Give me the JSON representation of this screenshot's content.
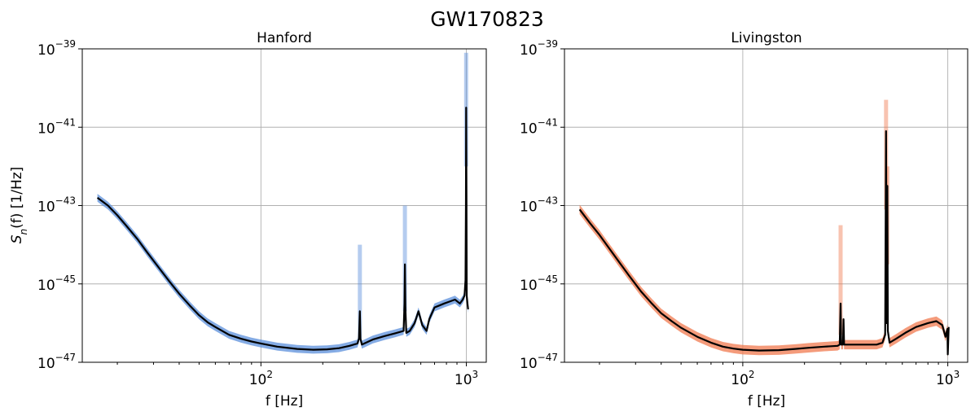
{
  "figure": {
    "title": "GW170823"
  },
  "chart_data": [
    {
      "type": "line",
      "title": "Hanford",
      "xlabel": "f [Hz]",
      "ylabel": "S_n(f) [1/Hz]",
      "ylabel_parts": {
        "main": "S",
        "sub": "n",
        "rest": "(f) [1/Hz]"
      },
      "xscale": "log",
      "yscale": "log",
      "xlim": [
        13.5,
        1250
      ],
      "ylim_exp": [
        -47,
        -39
      ],
      "x_ticks": [
        {
          "base": "10",
          "exp": "2",
          "value": 100
        },
        {
          "base": "10",
          "exp": "3",
          "value": 1000
        }
      ],
      "y_ticks": [
        {
          "base": "10",
          "exp": "−39",
          "value": -39
        },
        {
          "base": "10",
          "exp": "−41",
          "value": -41
        },
        {
          "base": "10",
          "exp": "−43",
          "value": -43
        },
        {
          "base": "10",
          "exp": "−45",
          "value": -45
        },
        {
          "base": "10",
          "exp": "−47",
          "value": -47
        }
      ],
      "grid": true,
      "band_color": "#5b8fdb",
      "median_color": "#000000",
      "log10_psd_median": [
        [
          16,
          -42.8
        ],
        [
          18,
          -43.0
        ],
        [
          20,
          -43.25
        ],
        [
          22,
          -43.5
        ],
        [
          25,
          -43.85
        ],
        [
          28,
          -44.2
        ],
        [
          32,
          -44.6
        ],
        [
          36,
          -44.95
        ],
        [
          40,
          -45.25
        ],
        [
          45,
          -45.55
        ],
        [
          50,
          -45.8
        ],
        [
          55,
          -45.98
        ],
        [
          60,
          -46.1
        ],
        [
          70,
          -46.3
        ],
        [
          80,
          -46.4
        ],
        [
          90,
          -46.47
        ],
        [
          100,
          -46.52
        ],
        [
          120,
          -46.6
        ],
        [
          150,
          -46.66
        ],
        [
          180,
          -46.68
        ],
        [
          210,
          -46.67
        ],
        [
          240,
          -46.64
        ],
        [
          270,
          -46.58
        ],
        [
          295,
          -46.52
        ],
        [
          300,
          -46.4
        ],
        [
          303,
          -45.7
        ],
        [
          305,
          -46.4
        ],
        [
          310,
          -46.55
        ],
        [
          350,
          -46.42
        ],
        [
          400,
          -46.33
        ],
        [
          450,
          -46.26
        ],
        [
          495,
          -46.2
        ],
        [
          500,
          -45.5
        ],
        [
          502,
          -44.5
        ],
        [
          505,
          -45.6
        ],
        [
          510,
          -46.25
        ],
        [
          530,
          -46.2
        ],
        [
          560,
          -46.0
        ],
        [
          585,
          -45.7
        ],
        [
          610,
          -46.05
        ],
        [
          640,
          -46.2
        ],
        [
          660,
          -45.9
        ],
        [
          700,
          -45.6
        ],
        [
          740,
          -45.55
        ],
        [
          780,
          -45.5
        ],
        [
          830,
          -45.45
        ],
        [
          880,
          -45.4
        ],
        [
          930,
          -45.5
        ],
        [
          960,
          -45.4
        ],
        [
          980,
          -45.3
        ],
        [
          990,
          -44.9
        ],
        [
          995,
          -43.0
        ],
        [
          998,
          -40.5
        ],
        [
          1001,
          -42.8
        ],
        [
          1004,
          -45.3
        ],
        [
          1012,
          -45.5
        ],
        [
          1020,
          -45.65
        ]
      ],
      "band_halfwidth_dex": 0.1,
      "band_extras": [
        [
          303,
          -44.0,
          0.9
        ],
        [
          502,
          -43.0,
          1.2
        ],
        [
          998,
          -39.1,
          1.4
        ]
      ]
    },
    {
      "type": "line",
      "title": "Livingston",
      "xlabel": "f [Hz]",
      "ylabel": "",
      "xscale": "log",
      "yscale": "log",
      "xlim": [
        13.5,
        1250
      ],
      "ylim_exp": [
        -47,
        -39
      ],
      "x_ticks": [
        {
          "base": "10",
          "exp": "2",
          "value": 100
        },
        {
          "base": "10",
          "exp": "3",
          "value": 1000
        }
      ],
      "y_ticks": [
        {
          "base": "10",
          "exp": "−39",
          "value": -39
        },
        {
          "base": "10",
          "exp": "−41",
          "value": -41
        },
        {
          "base": "10",
          "exp": "−43",
          "value": -43
        },
        {
          "base": "10",
          "exp": "−45",
          "value": -45
        },
        {
          "base": "10",
          "exp": "−47",
          "value": -47
        }
      ],
      "grid": true,
      "band_color": "#f0794f",
      "median_color": "#000000",
      "log10_psd_median": [
        [
          16,
          -43.1
        ],
        [
          18,
          -43.45
        ],
        [
          20,
          -43.75
        ],
        [
          22,
          -44.05
        ],
        [
          25,
          -44.45
        ],
        [
          28,
          -44.8
        ],
        [
          32,
          -45.2
        ],
        [
          36,
          -45.5
        ],
        [
          40,
          -45.75
        ],
        [
          45,
          -45.95
        ],
        [
          50,
          -46.12
        ],
        [
          60,
          -46.35
        ],
        [
          70,
          -46.5
        ],
        [
          80,
          -46.6
        ],
        [
          90,
          -46.65
        ],
        [
          100,
          -46.68
        ],
        [
          120,
          -46.7
        ],
        [
          150,
          -46.69
        ],
        [
          180,
          -46.66
        ],
        [
          210,
          -46.63
        ],
        [
          250,
          -46.6
        ],
        [
          290,
          -46.58
        ],
        [
          297,
          -46.55
        ],
        [
          300,
          -45.5
        ],
        [
          302,
          -46.55
        ],
        [
          308,
          -46.55
        ],
        [
          310,
          -45.9
        ],
        [
          312,
          -46.55
        ],
        [
          350,
          -46.55
        ],
        [
          400,
          -46.55
        ],
        [
          450,
          -46.55
        ],
        [
          480,
          -46.5
        ],
        [
          495,
          -46.3
        ],
        [
          500,
          -41.1
        ],
        [
          503,
          -46.0
        ],
        [
          507,
          -42.5
        ],
        [
          510,
          -46.2
        ],
        [
          520,
          -46.5
        ],
        [
          560,
          -46.4
        ],
        [
          620,
          -46.25
        ],
        [
          700,
          -46.1
        ],
        [
          800,
          -46.0
        ],
        [
          880,
          -45.95
        ],
        [
          940,
          -46.05
        ],
        [
          975,
          -46.35
        ],
        [
          995,
          -46.15
        ],
        [
          1000,
          -46.8
        ],
        [
          1010,
          -46.1
        ]
      ],
      "band_halfwidth_dex": 0.12,
      "band_extras": [
        [
          300,
          -43.5,
          1.3
        ],
        [
          500,
          -40.3,
          1.3
        ],
        [
          507,
          -42.0,
          1.0
        ]
      ]
    }
  ]
}
